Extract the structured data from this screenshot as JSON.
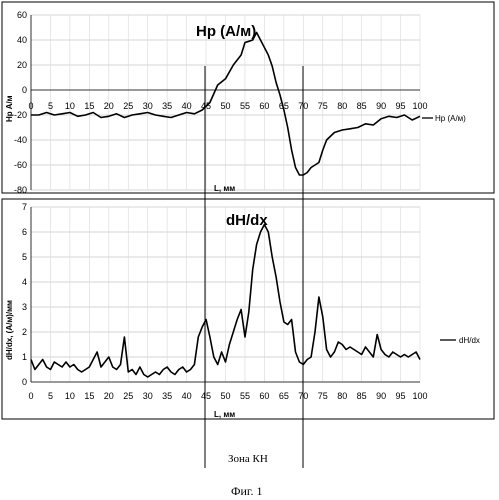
{
  "chart_data": [
    {
      "type": "line",
      "title": "Hp (A/м)",
      "xlabel": "L, мм",
      "ylabel": "Hp A/м",
      "xlim": [
        0,
        100
      ],
      "ylim": [
        -80,
        60
      ],
      "x_ticks": [
        "0",
        "5",
        "10",
        "15",
        "20",
        "25",
        "30",
        "35",
        "40",
        "45",
        "50",
        "55",
        "60",
        "65",
        "70",
        "75",
        "80",
        "85",
        "90",
        "95",
        "100"
      ],
      "y_ticks": [
        "60",
        "40",
        "20",
        "0",
        "-20",
        "-40",
        "-60",
        "-80"
      ],
      "grid": true,
      "legend": "right",
      "series": [
        {
          "name": "Hp (A/м)",
          "x": [
            0,
            2,
            4,
            6,
            8,
            10,
            12,
            14,
            16,
            18,
            20,
            22,
            24,
            26,
            28,
            30,
            32,
            34,
            36,
            38,
            40,
            42,
            44,
            46,
            48,
            50,
            52,
            54,
            55,
            56,
            57,
            58,
            59,
            60,
            61,
            62,
            63,
            64,
            65,
            66,
            67,
            68,
            69,
            70,
            71,
            72,
            73,
            74,
            75,
            76,
            78,
            80,
            82,
            84,
            86,
            88,
            90,
            92,
            94,
            96,
            98,
            100
          ],
          "y": [
            -20,
            -20,
            -18,
            -20,
            -19,
            -18,
            -21,
            -20,
            -18,
            -22,
            -21,
            -19,
            -22,
            -20,
            -19,
            -18,
            -20,
            -21,
            -22,
            -20,
            -18,
            -19,
            -16,
            -10,
            4,
            9,
            20,
            28,
            38,
            39,
            40,
            46,
            40,
            34,
            28,
            19,
            6,
            -4,
            -16,
            -30,
            -48,
            -62,
            -68,
            -68,
            -66,
            -62,
            -60,
            -58,
            -48,
            -40,
            -34,
            -32,
            -31,
            -30,
            -27,
            -28,
            -23,
            -21,
            -22,
            -20,
            -24,
            -21
          ]
        }
      ]
    },
    {
      "type": "line",
      "title": "dH/dx",
      "xlabel": "L, мм",
      "ylabel": "dH/dx, (A/м)/мм",
      "xlim": [
        0,
        100
      ],
      "ylim": [
        0,
        7
      ],
      "x_ticks": [
        "0",
        "5",
        "10",
        "15",
        "20",
        "25",
        "30",
        "35",
        "40",
        "45",
        "50",
        "55",
        "60",
        "65",
        "70",
        "75",
        "80",
        "85",
        "90",
        "95",
        "100"
      ],
      "y_ticks": [
        "7",
        "6",
        "5",
        "4",
        "3",
        "2",
        "1",
        "0"
      ],
      "grid": true,
      "legend": "right",
      "series": [
        {
          "name": "dH/dx",
          "x": [
            0,
            1,
            2,
            3,
            4,
            5,
            6,
            7,
            8,
            9,
            10,
            11,
            12,
            13,
            14,
            15,
            16,
            17,
            18,
            19,
            20,
            21,
            22,
            23,
            24,
            25,
            26,
            27,
            28,
            29,
            30,
            31,
            32,
            33,
            34,
            35,
            36,
            37,
            38,
            39,
            40,
            41,
            42,
            43,
            44,
            45,
            46,
            47,
            48,
            49,
            50,
            51,
            52,
            53,
            54,
            55,
            56,
            57,
            58,
            59,
            60,
            61,
            62,
            63,
            64,
            65,
            66,
            67,
            68,
            69,
            70,
            71,
            72,
            73,
            74,
            75,
            76,
            77,
            78,
            79,
            80,
            81,
            82,
            83,
            84,
            85,
            86,
            87,
            88,
            89,
            90,
            91,
            92,
            93,
            94,
            95,
            96,
            97,
            98,
            99,
            100
          ],
          "y": [
            0.9,
            0.5,
            0.7,
            0.9,
            0.6,
            0.5,
            0.8,
            0.7,
            0.6,
            0.8,
            0.6,
            0.7,
            0.5,
            0.4,
            0.5,
            0.6,
            0.9,
            1.2,
            0.6,
            0.8,
            1.0,
            0.6,
            0.5,
            0.7,
            1.8,
            0.4,
            0.5,
            0.3,
            0.6,
            0.3,
            0.2,
            0.3,
            0.4,
            0.3,
            0.5,
            0.6,
            0.4,
            0.3,
            0.5,
            0.6,
            0.4,
            0.5,
            0.7,
            1.8,
            2.2,
            2.5,
            1.8,
            1.0,
            0.7,
            1.2,
            0.8,
            1.5,
            2.0,
            2.5,
            2.9,
            1.8,
            2.8,
            4.5,
            5.5,
            6.0,
            6.3,
            6.0,
            5.0,
            4.2,
            3.2,
            2.4,
            2.3,
            2.5,
            1.2,
            0.8,
            0.7,
            0.9,
            1.0,
            2.0,
            3.4,
            2.6,
            1.3,
            1.0,
            1.2,
            1.6,
            1.5,
            1.3,
            1.4,
            1.3,
            1.2,
            1.1,
            1.4,
            1.2,
            1.0,
            1.9,
            1.3,
            1.1,
            1.0,
            1.2,
            1.1,
            1.0,
            1.1,
            1.0,
            1.1,
            1.2,
            0.9
          ]
        }
      ]
    }
  ],
  "annotations": {
    "zone_label": "Зона КН",
    "figure_caption": "Фиг. 1"
  }
}
